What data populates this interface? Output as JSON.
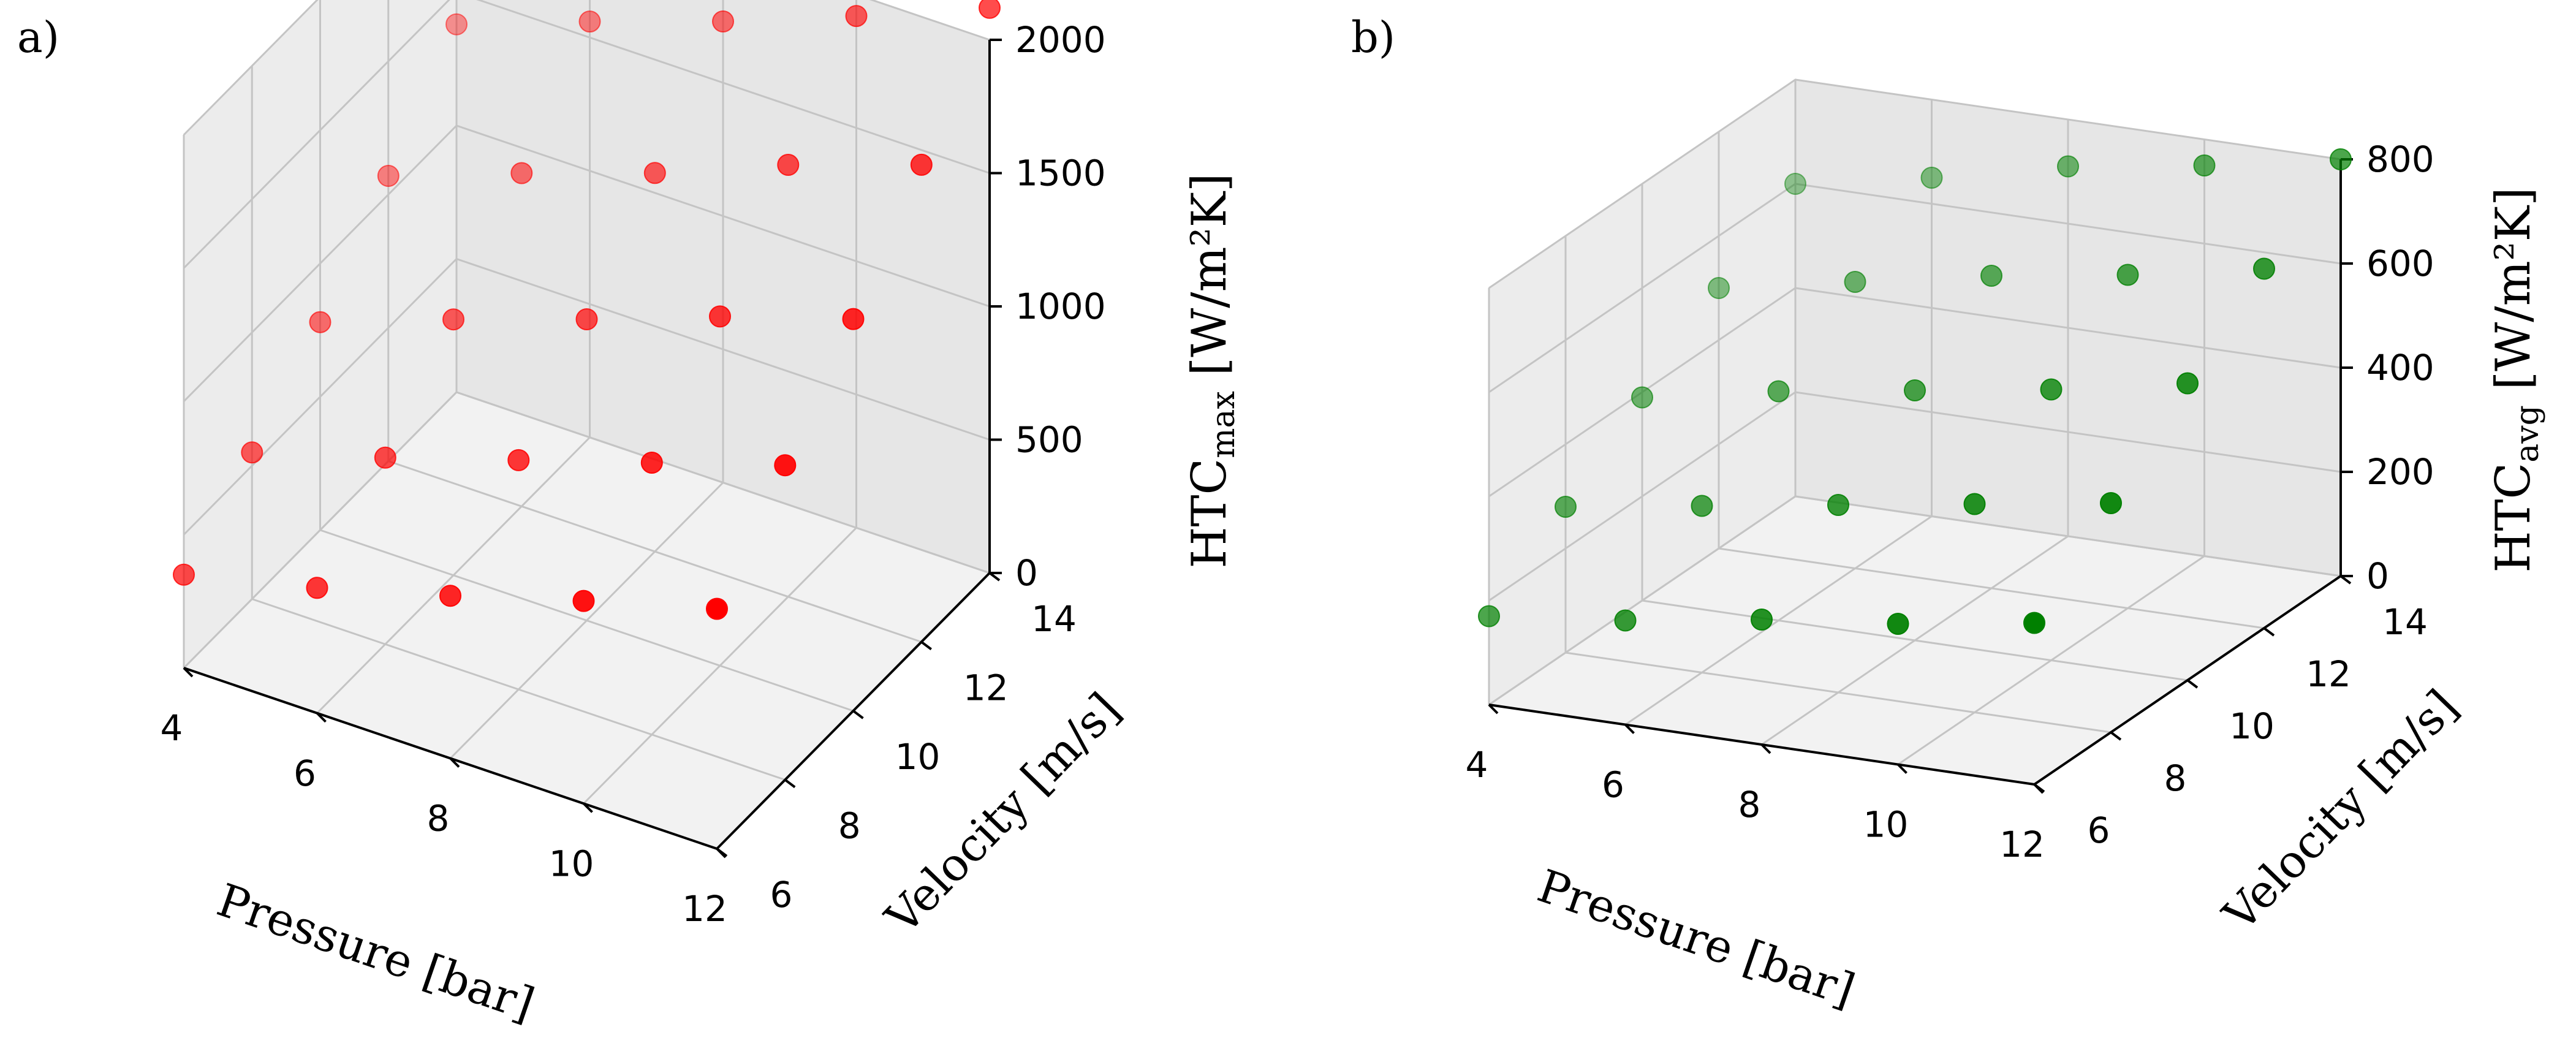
{
  "chart_data": [
    {
      "type": "scatter3d",
      "panel_label": "a)",
      "color": "#ff0000",
      "xlabel": "Pressure [bar]",
      "ylabel": "Velocity [m/s]",
      "zlabel_main": "HTC",
      "zlabel_sub": "max",
      "zlabel_unit": " [W/m²K]",
      "xlim": [
        4,
        12
      ],
      "ylim": [
        6,
        14
      ],
      "zlim": [
        0,
        2000
      ],
      "xticks": [
        12,
        10,
        8,
        6,
        4
      ],
      "yticks": [
        6,
        8,
        10,
        12,
        14
      ],
      "zticks": [
        0,
        500,
        1000,
        1500,
        2000
      ],
      "pressure": [
        4,
        6,
        8,
        10,
        12
      ],
      "velocity": [
        6,
        8,
        10,
        12,
        14
      ],
      "values": [
        [
          350,
          550,
          780,
          1070,
          1380
        ],
        [
          470,
          700,
          960,
          1250,
          1560
        ],
        [
          610,
          860,
          1130,
          1420,
          1730
        ],
        [
          760,
          1020,
          1310,
          1620,
          1920
        ],
        [
          900,
          1180,
          1470,
          1790,
          2120
        ]
      ]
    },
    {
      "type": "scatter3d",
      "panel_label": "b)",
      "color": "#008000",
      "xlabel": "Pressure [bar]",
      "ylabel": "Velocity [m/s]",
      "zlabel_main": "HTC",
      "zlabel_sub": "avg",
      "zlabel_unit": " [W/m²K]",
      "xlim": [
        4,
        12
      ],
      "ylim": [
        6,
        14
      ],
      "zlim": [
        0,
        800
      ],
      "xticks": [
        12,
        10,
        8,
        6,
        4
      ],
      "yticks": [
        6,
        8,
        10,
        12,
        14
      ],
      "zticks": [
        0,
        200,
        400,
        600,
        800
      ],
      "pressure": [
        4,
        6,
        8,
        10,
        12
      ],
      "velocity": [
        6,
        8,
        10,
        12,
        14
      ],
      "values": [
        [
          170,
          280,
          390,
          500,
          600
        ],
        [
          200,
          320,
          440,
          550,
          650
        ],
        [
          240,
          360,
          480,
          600,
          710
        ],
        [
          270,
          400,
          520,
          640,
          750
        ],
        [
          310,
          440,
          570,
          690,
          800
        ]
      ]
    }
  ]
}
